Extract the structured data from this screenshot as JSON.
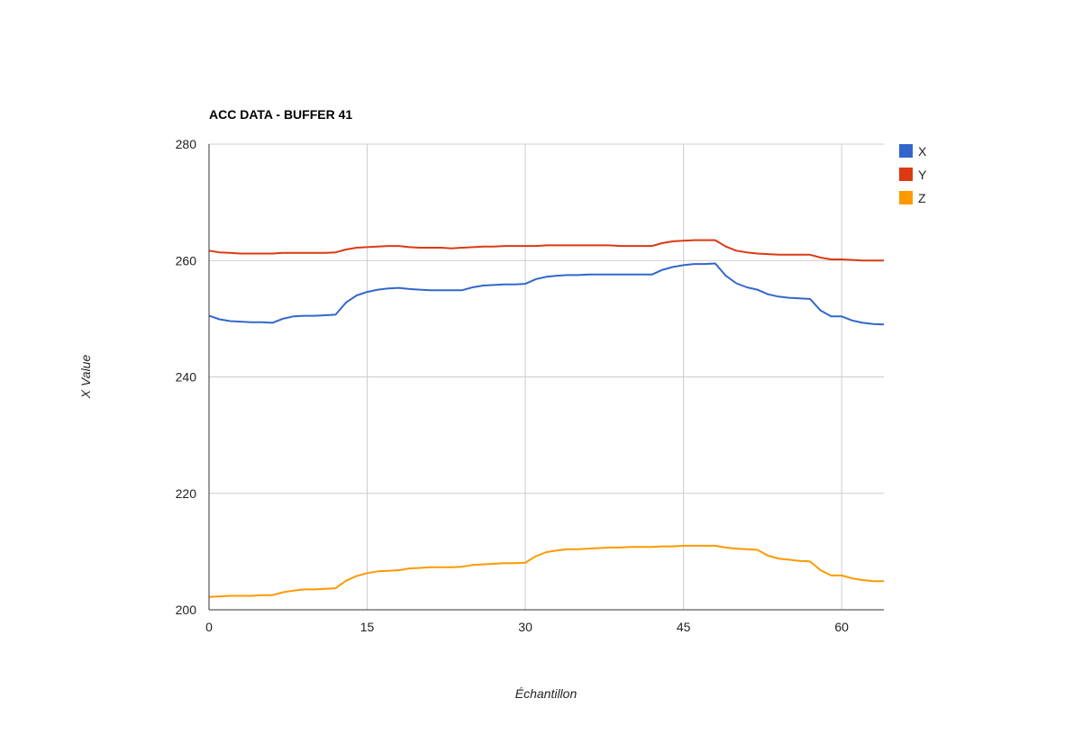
{
  "chart_data": {
    "type": "line",
    "title": "ACC DATA - BUFFER 41",
    "xlabel": "Échantillon",
    "ylabel": "X Value",
    "xlim": [
      0,
      64
    ],
    "ylim": [
      200,
      280
    ],
    "x_ticks": [
      0,
      15,
      30,
      45,
      60
    ],
    "y_ticks": [
      200,
      220,
      240,
      260,
      280
    ],
    "grid": true,
    "legend_position": "right",
    "x": [
      0,
      1,
      2,
      3,
      4,
      5,
      6,
      7,
      8,
      9,
      10,
      11,
      12,
      13,
      14,
      15,
      16,
      17,
      18,
      19,
      20,
      21,
      22,
      23,
      24,
      25,
      26,
      27,
      28,
      29,
      30,
      31,
      32,
      33,
      34,
      35,
      36,
      37,
      38,
      39,
      40,
      41,
      42,
      43,
      44,
      45,
      46,
      47,
      48,
      49,
      50,
      51,
      52,
      53,
      54,
      55,
      56,
      57,
      58,
      59,
      60,
      61,
      62,
      63,
      64
    ],
    "series": [
      {
        "name": "X",
        "color": "#3366cc",
        "values": [
          250.5,
          249.9,
          249.6,
          249.5,
          249.4,
          249.4,
          249.3,
          250.0,
          250.4,
          250.5,
          250.5,
          250.6,
          250.7,
          252.8,
          254.0,
          254.6,
          255.0,
          255.2,
          255.3,
          255.1,
          255.0,
          254.9,
          254.9,
          254.9,
          254.9,
          255.4,
          255.7,
          255.8,
          255.9,
          255.9,
          256.0,
          256.8,
          257.2,
          257.4,
          257.5,
          257.5,
          257.6,
          257.6,
          257.6,
          257.6,
          257.6,
          257.6,
          257.6,
          258.4,
          258.9,
          259.2,
          259.4,
          259.4,
          259.5,
          257.4,
          256.1,
          255.4,
          255.0,
          254.2,
          253.8,
          253.6,
          253.5,
          253.4,
          251.4,
          250.4,
          250.4,
          249.7,
          249.3,
          249.1,
          249.0
        ]
      },
      {
        "name": "Y",
        "color": "#dc3912",
        "values": [
          261.7,
          261.4,
          261.3,
          261.2,
          261.2,
          261.2,
          261.2,
          261.3,
          261.3,
          261.3,
          261.3,
          261.3,
          261.4,
          261.9,
          262.2,
          262.3,
          262.4,
          262.5,
          262.5,
          262.3,
          262.2,
          262.2,
          262.2,
          262.1,
          262.2,
          262.3,
          262.4,
          262.4,
          262.5,
          262.5,
          262.5,
          262.5,
          262.6,
          262.6,
          262.6,
          262.6,
          262.6,
          262.6,
          262.6,
          262.5,
          262.5,
          262.5,
          262.5,
          263.0,
          263.3,
          263.4,
          263.5,
          263.5,
          263.5,
          262.4,
          261.7,
          261.4,
          261.2,
          261.1,
          261.0,
          261.0,
          261.0,
          261.0,
          260.5,
          260.2,
          260.2,
          260.1,
          260.0,
          260.0,
          260.0
        ]
      },
      {
        "name": "Z",
        "color": "#ff9900",
        "values": [
          202.2,
          202.3,
          202.4,
          202.4,
          202.4,
          202.5,
          202.5,
          203.0,
          203.3,
          203.5,
          203.5,
          203.6,
          203.7,
          205.0,
          205.8,
          206.3,
          206.6,
          206.7,
          206.8,
          207.1,
          207.2,
          207.3,
          207.3,
          207.3,
          207.4,
          207.7,
          207.8,
          207.9,
          208.0,
          208.0,
          208.1,
          209.2,
          209.9,
          210.2,
          210.4,
          210.4,
          210.5,
          210.6,
          210.7,
          210.7,
          210.8,
          210.8,
          210.8,
          210.9,
          210.9,
          211.0,
          211.0,
          211.0,
          211.0,
          210.7,
          210.5,
          210.4,
          210.3,
          209.3,
          208.8,
          208.6,
          208.4,
          208.3,
          206.8,
          205.9,
          205.9,
          205.4,
          205.1,
          204.9,
          204.9
        ]
      }
    ]
  }
}
